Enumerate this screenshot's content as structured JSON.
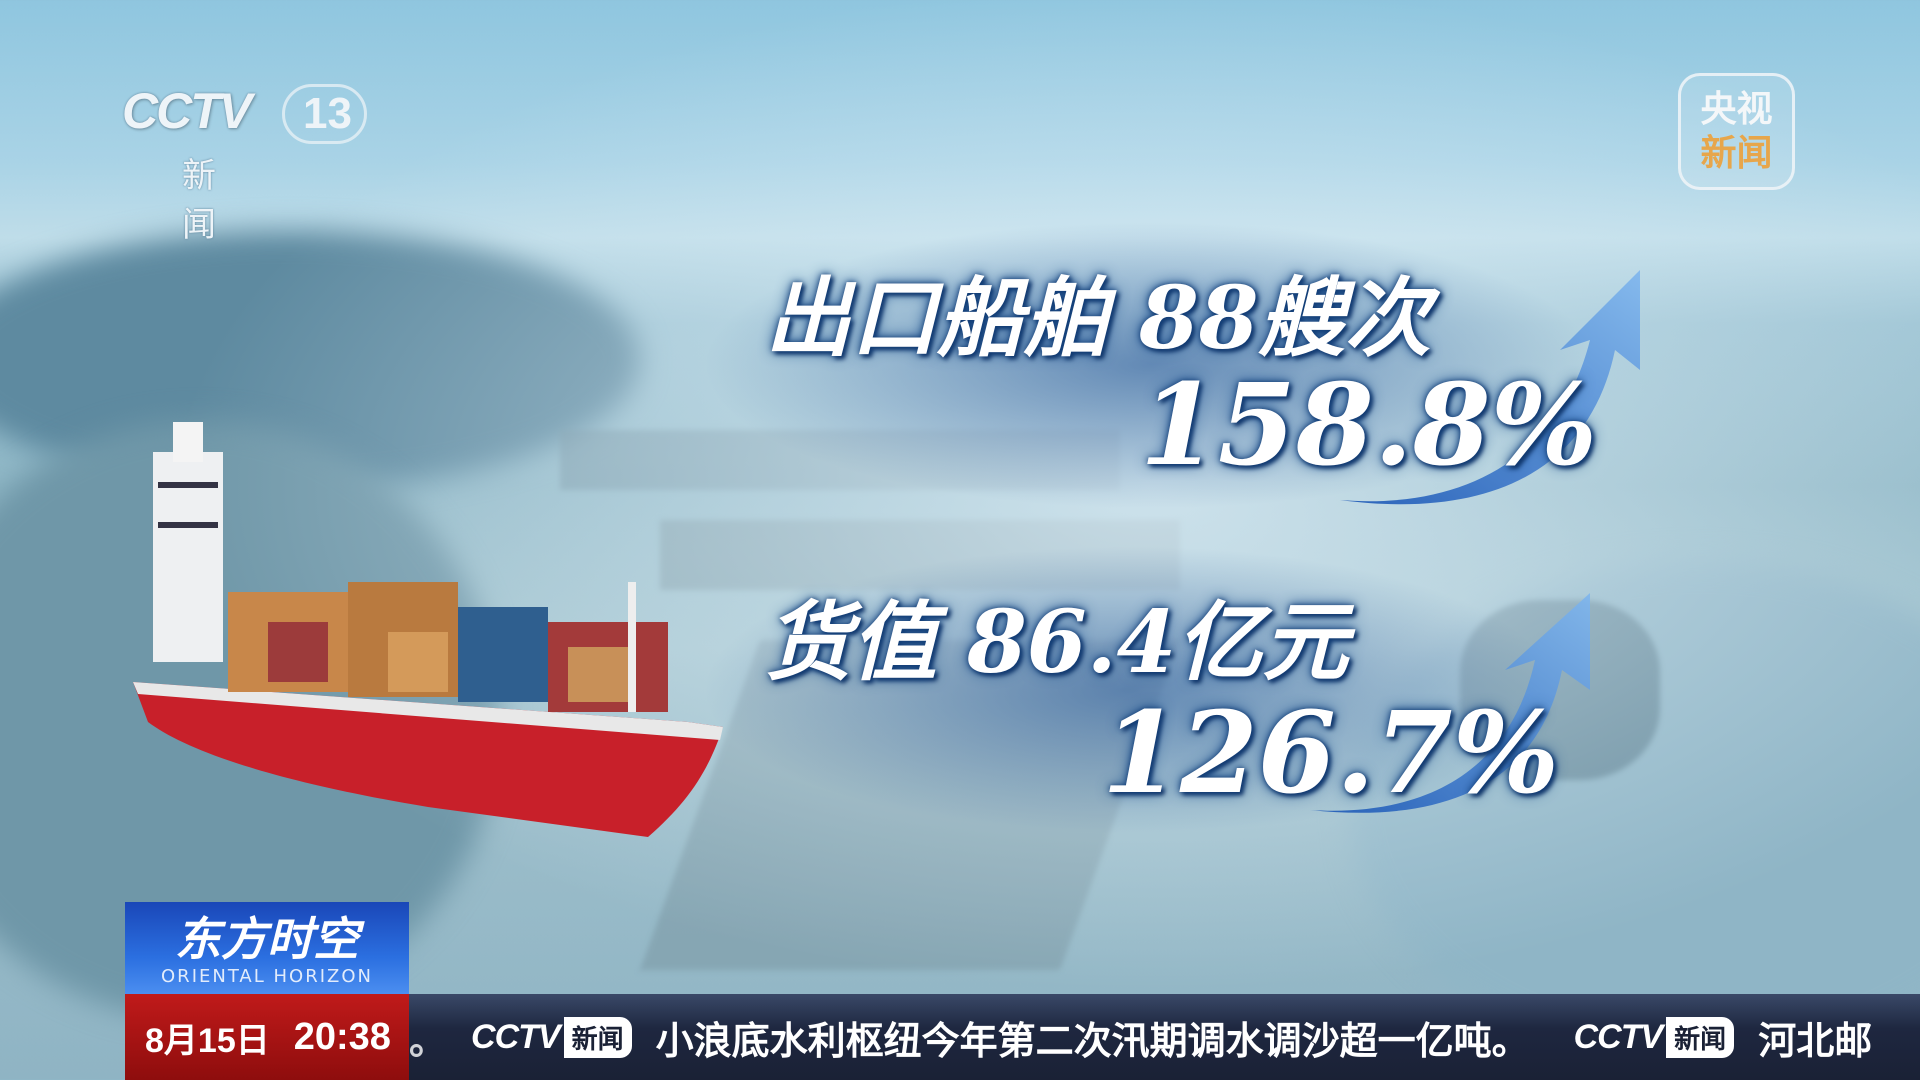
{
  "channel_logo": {
    "brand": "CCTV",
    "number": "13",
    "name": "新 闻"
  },
  "corner_badge": {
    "line1": "央视",
    "line2": "新闻"
  },
  "stats": [
    {
      "label": "出口船舶 88艘次",
      "change": "158.8%"
    },
    {
      "label": "货值 86.4亿元",
      "change": "126.7%"
    }
  ],
  "program": {
    "title": "东方时空",
    "subtitle": "ORIENTAL HORIZON"
  },
  "datetime": {
    "date": "8月15日",
    "time": "20:38"
  },
  "ticker": {
    "lead": "。",
    "brand": "CCTV",
    "tag": "新闻",
    "headline": "小浪底水利枢纽今年第二次汛期调水调沙超一亿吨。",
    "next": "河北邮"
  },
  "colors": {
    "ticker_bg": "#1e2740",
    "date_bg": "#c01a1a",
    "program_bg": "#2b6fe0",
    "accent_orange": "#e7a64b"
  }
}
